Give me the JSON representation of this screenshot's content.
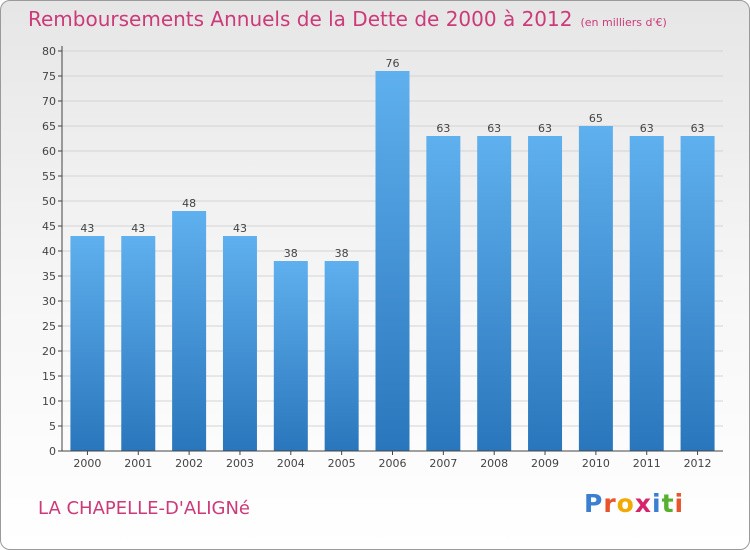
{
  "header": {
    "title": "Remboursements Annuels de la Dette de 2000 à 2012",
    "unit": "(en milliers d'€)"
  },
  "footer": {
    "commune": "LA CHAPELLE-D'ALIGNé",
    "logo_letters": [
      "P",
      "r",
      "o",
      "x",
      "i",
      "t",
      "i"
    ],
    "logo_colors": [
      "#3b7fd0",
      "#e8542c",
      "#f2a900",
      "#d6256a",
      "#3b7fd0",
      "#58b030",
      "#e8542c"
    ]
  },
  "chart_data": {
    "type": "bar",
    "title": "Remboursements Annuels de la Dette de 2000 à 2012",
    "xlabel": "",
    "ylabel": "",
    "categories": [
      "2000",
      "2001",
      "2002",
      "2003",
      "2004",
      "2005",
      "2006",
      "2007",
      "2008",
      "2009",
      "2010",
      "2011",
      "2012"
    ],
    "values": [
      43,
      43,
      48,
      43,
      38,
      38,
      76,
      63,
      63,
      63,
      65,
      63,
      63
    ],
    "value_labels": [
      "43",
      "43",
      "48",
      "43",
      "38",
      "38",
      "76",
      "63",
      "63",
      "63",
      "65",
      "63",
      "63"
    ],
    "ylim": [
      0,
      80
    ],
    "y_ticks": [
      "0",
      "5",
      "10",
      "15",
      "20",
      "25",
      "30",
      "35",
      "40",
      "45",
      "50",
      "55",
      "60",
      "65",
      "70",
      "75",
      "80"
    ],
    "grid": true,
    "legend": "none",
    "bar_color": "#3d8fd6"
  }
}
